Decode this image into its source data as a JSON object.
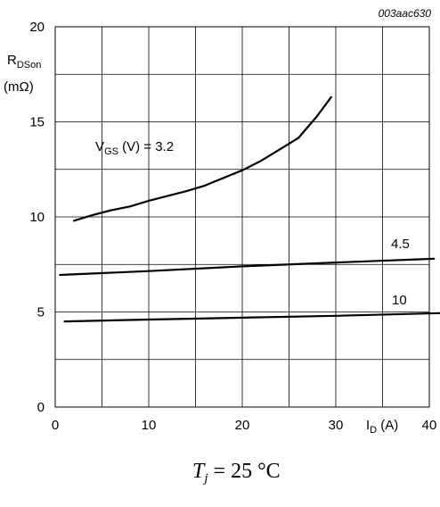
{
  "chart_data": {
    "type": "line",
    "figure_code": "003aac630",
    "ylabel": {
      "main": "R",
      "sub": "DSon",
      "unit": "(mΩ)"
    },
    "xlabel": {
      "main": "I",
      "sub": "D",
      "unit": " (A)"
    },
    "xlim": [
      0,
      40
    ],
    "ylim": [
      0,
      20
    ],
    "xticks": [
      0,
      10,
      20,
      30,
      40
    ],
    "yticks": [
      0,
      5,
      10,
      15,
      20
    ],
    "grid": true,
    "series": [
      {
        "name": "3.2",
        "label_prefix": {
          "main": "V",
          "sub": "GS",
          "rest": " (V) = "
        },
        "x": [
          2,
          4,
          6,
          8,
          10,
          12,
          14,
          16,
          18,
          20,
          22,
          24,
          26,
          28,
          29.5
        ],
        "y": [
          9.8,
          10.1,
          10.35,
          10.55,
          10.85,
          11.1,
          11.35,
          11.65,
          12.05,
          12.45,
          12.95,
          13.55,
          14.15,
          15.3,
          16.3
        ]
      },
      {
        "name": "4.5",
        "x": [
          0.5,
          10,
          20,
          30,
          40.5
        ],
        "y": [
          6.95,
          7.15,
          7.4,
          7.6,
          7.8
        ]
      },
      {
        "name": "10",
        "x": [
          1,
          10,
          20,
          30,
          42
        ],
        "y": [
          4.5,
          4.6,
          4.7,
          4.8,
          4.95
        ]
      }
    ],
    "annotations": [
      "T",
      "j",
      " = 25 °C"
    ]
  }
}
